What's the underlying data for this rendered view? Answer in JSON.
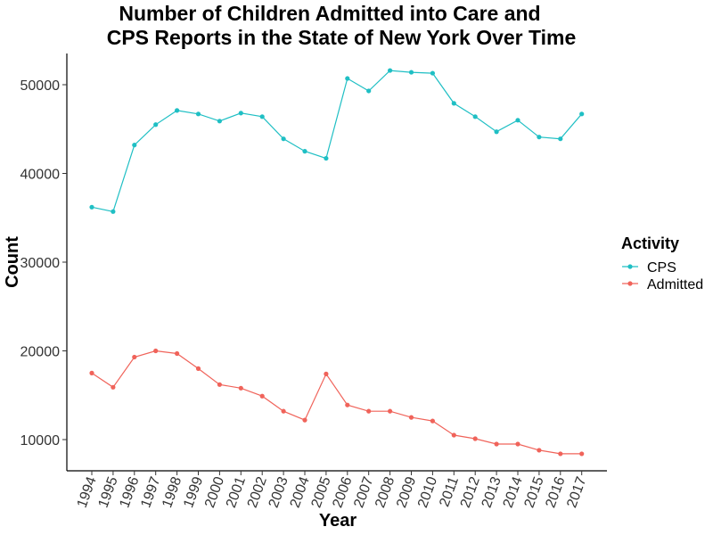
{
  "chart_data": {
    "type": "line",
    "title_line1": "Number of Children Admitted into Care and",
    "title_line2": "CPS Reports in the State of New York Over Time",
    "xlabel": "Year",
    "ylabel": "Count",
    "x": [
      "1994",
      "1995",
      "1996",
      "1997",
      "1998",
      "1999",
      "2000",
      "2001",
      "2002",
      "2003",
      "2004",
      "2005",
      "2006",
      "2007",
      "2008",
      "2009",
      "2010",
      "2011",
      "2012",
      "2013",
      "2014",
      "2015",
      "2016",
      "2017"
    ],
    "yticks": [
      10000,
      20000,
      30000,
      40000,
      50000
    ],
    "ylim": [
      6500,
      53800
    ],
    "grid": false,
    "legend": {
      "title": "Activity",
      "position": "right",
      "entries": [
        "CPS",
        "Admitted"
      ]
    },
    "series": [
      {
        "name": "CPS",
        "color": "#1fbfc4",
        "values": [
          36200,
          35700,
          43200,
          45500,
          47100,
          46700,
          45900,
          46800,
          46400,
          43900,
          42500,
          41700,
          50700,
          49300,
          51600,
          51400,
          51300,
          47900,
          46400,
          44700,
          46000,
          44100,
          43900,
          46700
        ]
      },
      {
        "name": "Admitted",
        "color": "#f0635a",
        "values": [
          17500,
          15900,
          19300,
          20000,
          19700,
          18000,
          16200,
          15800,
          14900,
          13200,
          12200,
          17400,
          13900,
          13200,
          13200,
          12500,
          12100,
          10500,
          10100,
          9500,
          9500,
          8800,
          8400,
          8400
        ]
      }
    ]
  }
}
